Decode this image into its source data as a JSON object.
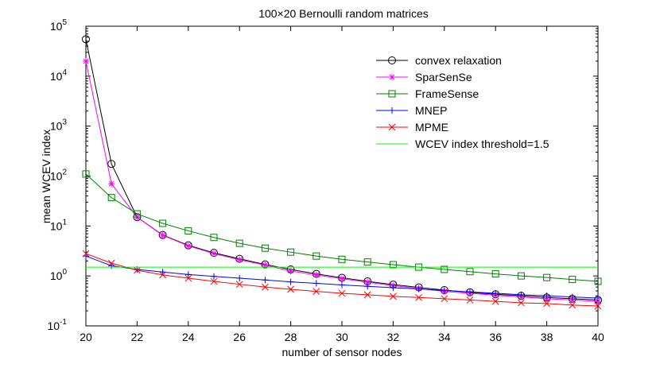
{
  "chart_data": {
    "type": "line",
    "title": "100×20 Bernoulli random matrices",
    "xlabel": "number of sensor nodes",
    "ylabel": "mean WCEV index",
    "xlim": [
      20,
      40
    ],
    "ylim": [
      0.1,
      100000
    ],
    "yscale": "log",
    "x_ticks": [
      20,
      22,
      24,
      26,
      28,
      30,
      32,
      34,
      36,
      38,
      40
    ],
    "y_ticks": [
      {
        "value": 0.1,
        "base": "10",
        "exp": "-1"
      },
      {
        "value": 1,
        "base": "10",
        "exp": "0"
      },
      {
        "value": 10,
        "base": "10",
        "exp": "1"
      },
      {
        "value": 100,
        "base": "10",
        "exp": "2"
      },
      {
        "value": 1000,
        "base": "10",
        "exp": "3"
      },
      {
        "value": 10000,
        "base": "10",
        "exp": "4"
      },
      {
        "value": 100000,
        "base": "10",
        "exp": "5"
      }
    ],
    "x": [
      20,
      21,
      22,
      23,
      24,
      25,
      26,
      27,
      28,
      29,
      30,
      31,
      32,
      33,
      34,
      35,
      36,
      37,
      38,
      39,
      40
    ],
    "series": [
      {
        "name": "convex relaxation",
        "color": "#000000",
        "marker": "circle",
        "values": [
          55000,
          175,
          15,
          6.6,
          4.1,
          2.9,
          2.2,
          1.7,
          1.35,
          1.1,
          0.92,
          0.78,
          0.67,
          0.59,
          0.52,
          0.47,
          0.43,
          0.4,
          0.37,
          0.35,
          0.33
        ]
      },
      {
        "name": "SparSenSe",
        "color": "#ff00ff",
        "marker": "asterisk",
        "values": [
          20000,
          70,
          15,
          6.5,
          4.0,
          2.8,
          2.1,
          1.65,
          1.25,
          1.05,
          0.88,
          0.75,
          0.64,
          0.56,
          0.49,
          0.45,
          0.41,
          0.38,
          0.35,
          0.33,
          0.31
        ]
      },
      {
        "name": "FrameSense",
        "color": "#007f00",
        "marker": "square",
        "values": [
          110,
          37,
          17.5,
          11.3,
          8.0,
          5.9,
          4.5,
          3.6,
          3.0,
          2.5,
          2.15,
          1.9,
          1.68,
          1.5,
          1.35,
          1.22,
          1.1,
          1.0,
          0.93,
          0.85,
          0.78
        ]
      },
      {
        "name": "MNEP",
        "color": "#0000ff",
        "marker": "plus",
        "values": [
          2.5,
          1.6,
          1.35,
          1.2,
          1.07,
          0.98,
          0.9,
          0.83,
          0.76,
          0.71,
          0.66,
          0.62,
          0.58,
          0.55,
          0.51,
          0.48,
          0.45,
          0.42,
          0.4,
          0.38,
          0.36
        ]
      },
      {
        "name": "MPME",
        "color": "#ff0000",
        "marker": "x",
        "values": [
          2.8,
          1.8,
          1.3,
          1.05,
          0.9,
          0.78,
          0.68,
          0.6,
          0.54,
          0.49,
          0.45,
          0.42,
          0.39,
          0.37,
          0.35,
          0.33,
          0.31,
          0.29,
          0.28,
          0.26,
          0.25
        ]
      },
      {
        "name": "WCEV index threshold=1.5",
        "color": "#00ff00",
        "marker": "none",
        "values": [
          1.5,
          1.5,
          1.5,
          1.5,
          1.5,
          1.5,
          1.5,
          1.5,
          1.5,
          1.5,
          1.5,
          1.5,
          1.5,
          1.5,
          1.5,
          1.5,
          1.5,
          1.5,
          1.5,
          1.5,
          1.5
        ]
      }
    ],
    "legend": "top-right"
  }
}
